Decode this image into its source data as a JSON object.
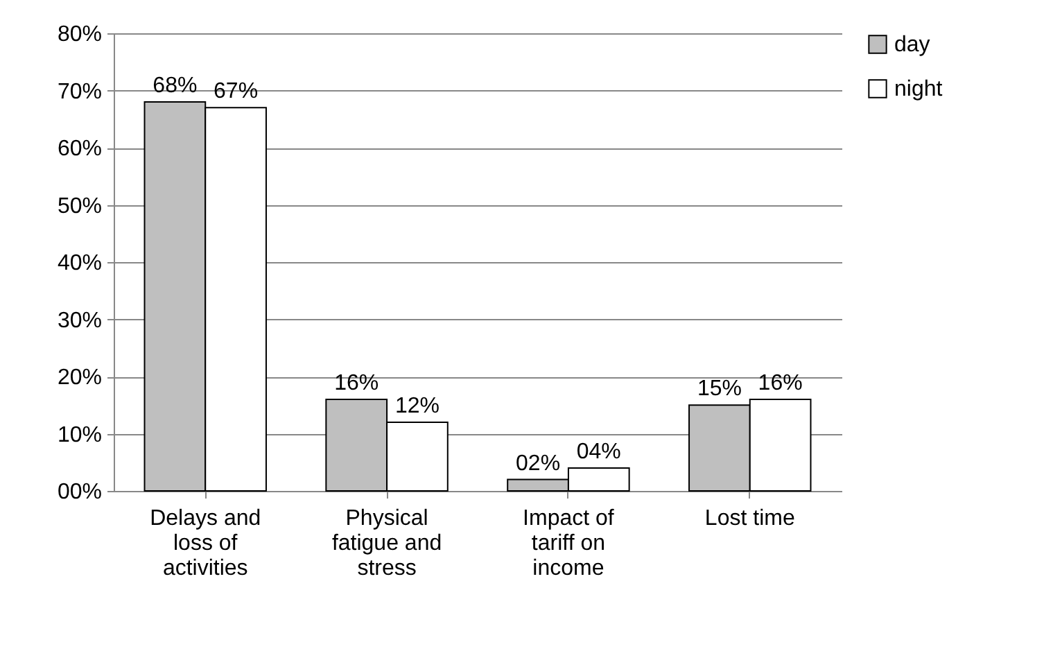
{
  "chart_data": {
    "type": "bar",
    "categories": [
      "Delays and loss of activities",
      "Physical fatigue and stress",
      "Impact of tariff on income",
      "Lost time"
    ],
    "series": [
      {
        "name": "day",
        "color": "#bfbfbf",
        "values": [
          68,
          16,
          2,
          15
        ],
        "value_labels": [
          "68%",
          "16%",
          "02%",
          "15%"
        ]
      },
      {
        "name": "night",
        "color": "#ffffff",
        "values": [
          67,
          12,
          4,
          16
        ],
        "value_labels": [
          "67%",
          "12%",
          "04%",
          "16%"
        ]
      }
    ],
    "ylim": [
      0,
      80
    ],
    "yticks": [
      {
        "value": 0,
        "label": "00%"
      },
      {
        "value": 10,
        "label": "10%"
      },
      {
        "value": 20,
        "label": "20%"
      },
      {
        "value": 30,
        "label": "30%"
      },
      {
        "value": 40,
        "label": "40%"
      },
      {
        "value": 50,
        "label": "50%"
      },
      {
        "value": 60,
        "label": "60%"
      },
      {
        "value": 70,
        "label": "70%"
      },
      {
        "value": 80,
        "label": "80%"
      }
    ],
    "grid": "y",
    "legend": "right"
  }
}
